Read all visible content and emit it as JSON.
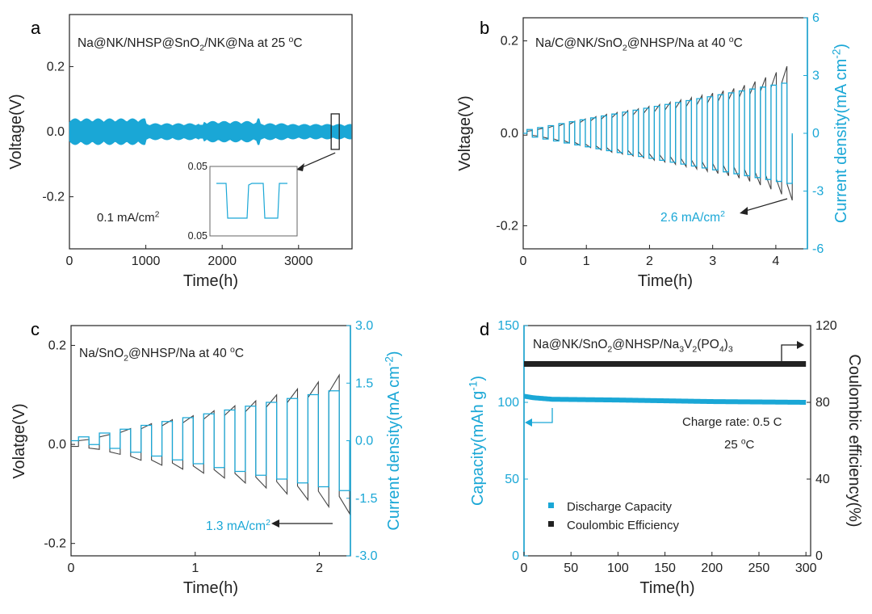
{
  "colors": {
    "cyan": "#1aa7d6",
    "black": "#222222",
    "grey": "#666666"
  },
  "chart_data": [
    {
      "panel": "a",
      "type": "line",
      "title": "Na@NK/NHSP@SnO2/NK@Na at 25 °C",
      "title_parts": [
        [
          "Na@NK/NHSP@SnO",
          "n"
        ],
        [
          "2",
          "sub"
        ],
        [
          "/NK@Na at 25 ",
          "n"
        ],
        [
          "o",
          "sup"
        ],
        [
          "C",
          "n"
        ]
      ],
      "xlabel": "Time(h)",
      "ylabel": "Voltage(V)",
      "xlim": [
        0,
        3700
      ],
      "ylim": [
        -0.36,
        0.36
      ],
      "xticks": [
        0,
        1000,
        2000,
        3000
      ],
      "xtick_labels": [
        "0",
        "1000",
        "2000",
        "3000"
      ],
      "yticks": [
        -0.2,
        0.0,
        0.2
      ],
      "ytick_labels": [
        "-0.2",
        "0.0",
        "0.2"
      ],
      "series": [
        {
          "name": "voltage band",
          "envelope_x": [
            0,
            500,
            1000,
            1700,
            1750,
            2000,
            2400,
            2450,
            2500,
            2850,
            3700
          ],
          "envelope_amp": [
            0.035,
            0.035,
            0.022,
            0.018,
            0.028,
            0.028,
            0.025,
            0.035,
            0.022,
            0.02,
            0.02
          ]
        }
      ],
      "annotation_rate": [
        [
          "0.1 mA/cm",
          "n"
        ],
        [
          "2",
          "sup"
        ]
      ],
      "inset": {
        "ytick_labels": [
          "0.05",
          "0.05"
        ]
      }
    },
    {
      "panel": "b",
      "type": "line",
      "title": "Na/C@NK/SnO2@NHSP/Na at 40 °C",
      "title_parts": [
        [
          "Na/C@NK/SnO",
          "n"
        ],
        [
          "2",
          "sub"
        ],
        [
          "@NHSP/Na at 40 ",
          "n"
        ],
        [
          "o",
          "sup"
        ],
        [
          "C",
          "n"
        ]
      ],
      "xlabel": "Time(h)",
      "ylabel": "Voltage(V)",
      "y2label_parts": [
        [
          "Current density(mA cm",
          "n"
        ],
        [
          "-2",
          "sup"
        ],
        [
          ")",
          "n"
        ]
      ],
      "xlim": [
        0,
        4.5
      ],
      "ylim": [
        -0.25,
        0.25
      ],
      "y2lim": [
        -6,
        6
      ],
      "xticks": [
        0,
        1,
        2,
        3,
        4
      ],
      "xtick_labels": [
        "0",
        "1",
        "2",
        "3",
        "4"
      ],
      "yticks": [
        -0.2,
        0.0,
        0.2
      ],
      "ytick_labels": [
        "-0.2",
        "0.0",
        "0.2"
      ],
      "y2ticks": [
        -6,
        -3,
        0,
        3,
        6
      ],
      "y2tick_labels": [
        "-6",
        "-3",
        "0",
        "3",
        "6"
      ],
      "step_current": [
        0.2,
        0.3,
        0.4,
        0.5,
        0.6,
        0.7,
        0.8,
        0.9,
        1.0,
        1.1,
        1.2,
        1.3,
        1.4,
        1.5,
        1.6,
        1.7,
        1.8,
        1.9,
        2.0,
        2.1,
        2.2,
        2.3,
        2.4,
        2.5,
        2.6
      ],
      "step_voltage": [
        0.006,
        0.011,
        0.016,
        0.021,
        0.026,
        0.031,
        0.036,
        0.041,
        0.045,
        0.049,
        0.053,
        0.058,
        0.062,
        0.067,
        0.072,
        0.077,
        0.082,
        0.087,
        0.092,
        0.097,
        0.104,
        0.112,
        0.121,
        0.132,
        0.145
      ],
      "step_duration_h": 0.168,
      "annotation_rate": [
        [
          "2.6 mA/cm",
          "n"
        ],
        [
          "2",
          "sup"
        ]
      ]
    },
    {
      "panel": "c",
      "type": "line",
      "title": "Na/SnO2@NHSP/Na at 40 °C",
      "title_parts": [
        [
          "Na/SnO",
          "n"
        ],
        [
          "2",
          "sub"
        ],
        [
          "@NHSP/Na at 40 ",
          "n"
        ],
        [
          "o",
          "sup"
        ],
        [
          "C",
          "n"
        ]
      ],
      "xlabel": "Time(h)",
      "ylabel": "Volatge(V)",
      "y2label_parts": [
        [
          "Current density(mA cm",
          "n"
        ],
        [
          "-2",
          "sup"
        ],
        [
          ")",
          "n"
        ]
      ],
      "xlim": [
        0,
        2.25
      ],
      "ylim": [
        -0.225,
        0.24
      ],
      "y2lim": [
        -3.0,
        3.0
      ],
      "xticks": [
        0,
        1,
        2
      ],
      "xtick_labels": [
        "0",
        "1",
        "2"
      ],
      "yticks": [
        -0.2,
        0.0,
        0.2
      ],
      "ytick_labels": [
        "-0.2",
        "0.0",
        "0.2"
      ],
      "y2ticks": [
        -3.0,
        -1.5,
        0.0,
        1.5,
        3.0
      ],
      "y2tick_labels": [
        "-3.0",
        "-1.5",
        "0.0",
        "1.5",
        "3.0"
      ],
      "step_current": [
        0.1,
        0.2,
        0.3,
        0.4,
        0.5,
        0.6,
        0.7,
        0.8,
        0.9,
        1.0,
        1.1,
        1.2,
        1.3
      ],
      "step_voltage": [
        0.01,
        0.02,
        0.032,
        0.042,
        0.05,
        0.058,
        0.068,
        0.078,
        0.088,
        0.1,
        0.112,
        0.126,
        0.14
      ],
      "step_duration_h": 0.168,
      "annotation_rate": [
        [
          "1.3 mA/cm",
          "n"
        ],
        [
          "2",
          "sup"
        ]
      ]
    },
    {
      "panel": "d",
      "type": "scatter",
      "title": "Na@NK/SnO2@NHSP/Na3V2(PO4)3",
      "title_parts": [
        [
          "Na@NK/SnO",
          "n"
        ],
        [
          "2",
          "sub"
        ],
        [
          "@NHSP/Na",
          "n"
        ],
        [
          "3",
          "sub"
        ],
        [
          "V",
          "n"
        ],
        [
          "2",
          "sub"
        ],
        [
          "(PO",
          "n"
        ],
        [
          "4",
          "sub"
        ],
        [
          ")",
          "n"
        ],
        [
          "3",
          "sub"
        ]
      ],
      "xlabel": "Time(h)",
      "ylabel_parts": [
        [
          "Capacity(mAh g",
          "n"
        ],
        [
          "-1",
          "sup"
        ],
        [
          ")",
          "n"
        ]
      ],
      "y2label": "Coulombic efficiency(%)",
      "xlim": [
        0,
        305
      ],
      "ylim": [
        0,
        150
      ],
      "y2lim": [
        0,
        120
      ],
      "xticks": [
        0,
        50,
        100,
        150,
        200,
        250,
        300
      ],
      "xtick_labels": [
        "0",
        "50",
        "100",
        "150",
        "200",
        "250",
        "300"
      ],
      "yticks": [
        0,
        50,
        100,
        150
      ],
      "ytick_labels": [
        "0",
        "50",
        "100",
        "150"
      ],
      "y2ticks": [
        0,
        40,
        80,
        120
      ],
      "y2tick_labels": [
        "0",
        "40",
        "80",
        "120"
      ],
      "series": [
        {
          "name": "Discharge Capacity",
          "axis": "left",
          "x": [
            0,
            10,
            30,
            100,
            200,
            300
          ],
          "y": [
            104,
            103,
            102,
            101.5,
            100.5,
            100
          ]
        },
        {
          "name": "Coulombic  Efficiency",
          "axis": "right",
          "x": [
            0,
            300
          ],
          "y": [
            100,
            100
          ]
        }
      ],
      "legend": [
        "Discharge Capacity",
        "Coulombic  Efficiency"
      ],
      "annotations": [
        "Charge rate: 0.5 C",
        "25 °C"
      ],
      "annotation_temp_parts": [
        [
          "25 ",
          "n"
        ],
        [
          "o",
          "sup"
        ],
        [
          "C",
          "n"
        ]
      ]
    }
  ]
}
